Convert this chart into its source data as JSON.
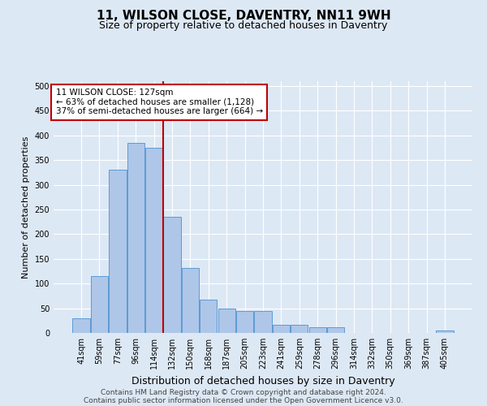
{
  "title": "11, WILSON CLOSE, DAVENTRY, NN11 9WH",
  "subtitle": "Size of property relative to detached houses in Daventry",
  "xlabel": "Distribution of detached houses by size in Daventry",
  "ylabel": "Number of detached properties",
  "categories": [
    "41sqm",
    "59sqm",
    "77sqm",
    "96sqm",
    "114sqm",
    "132sqm",
    "150sqm",
    "168sqm",
    "187sqm",
    "205sqm",
    "223sqm",
    "241sqm",
    "259sqm",
    "278sqm",
    "296sqm",
    "314sqm",
    "332sqm",
    "350sqm",
    "369sqm",
    "387sqm",
    "405sqm"
  ],
  "values": [
    30,
    115,
    330,
    385,
    375,
    235,
    132,
    67,
    50,
    45,
    45,
    17,
    17,
    11,
    11,
    0,
    0,
    0,
    0,
    0,
    5
  ],
  "bar_color": "#aec6e8",
  "bar_edgecolor": "#5b9bd5",
  "vline_x": 4.5,
  "vline_color": "#c00000",
  "annotation_text": "11 WILSON CLOSE: 127sqm\n← 63% of detached houses are smaller (1,128)\n37% of semi-detached houses are larger (664) →",
  "annotation_box_color": "#ffffff",
  "annotation_box_edgecolor": "#c00000",
  "ylim": [
    0,
    510
  ],
  "yticks": [
    0,
    50,
    100,
    150,
    200,
    250,
    300,
    350,
    400,
    450,
    500
  ],
  "footer_line1": "Contains HM Land Registry data © Crown copyright and database right 2024.",
  "footer_line2": "Contains public sector information licensed under the Open Government Licence v3.0.",
  "background_color": "#dde8f5",
  "grid_color": "#ffffff",
  "title_fontsize": 11,
  "subtitle_fontsize": 9,
  "xlabel_fontsize": 9,
  "ylabel_fontsize": 8,
  "tick_fontsize": 7,
  "footer_fontsize": 6.5,
  "annotation_fontsize": 7.5
}
